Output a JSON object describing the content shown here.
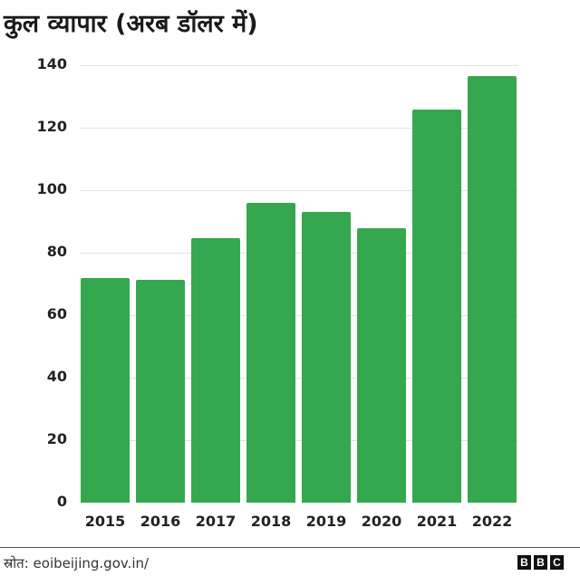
{
  "title": "कुल व्यापार (अरब डॉलर में)",
  "footer": {
    "source": "स्रोत: eoibeijing.gov.in/",
    "logo_letters": [
      "B",
      "B",
      "C"
    ]
  },
  "colors": {
    "bar": "#35a74f",
    "gridline": "#e3e3e3",
    "text": "#222222"
  },
  "chart_data": {
    "type": "bar",
    "title": "कुल व्यापार (अरब डॉलर में)",
    "xlabel": "",
    "ylabel": "",
    "categories": [
      "2015",
      "2016",
      "2017",
      "2018",
      "2019",
      "2020",
      "2021",
      "2022"
    ],
    "values": [
      72,
      71.4,
      84.7,
      95.9,
      93,
      87.9,
      125.8,
      136.4
    ],
    "yticks": [
      "0",
      "20",
      "40",
      "60",
      "80",
      "100",
      "120",
      "140"
    ],
    "ylim": [
      0,
      140
    ],
    "grid": true,
    "legend": null,
    "source": "स्रोत: eoibeijing.gov.in/"
  }
}
